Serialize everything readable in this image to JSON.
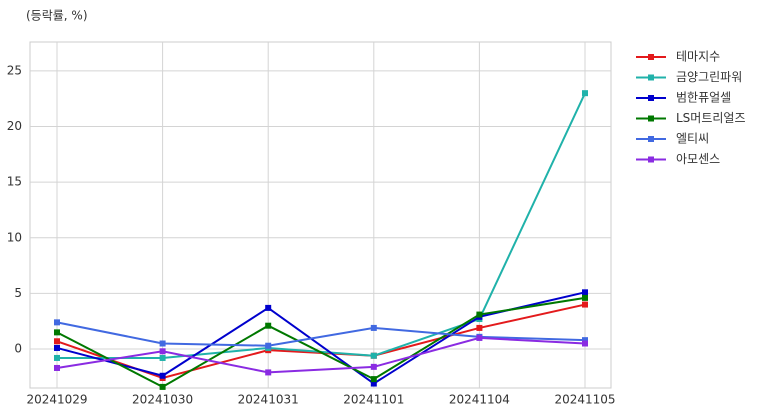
{
  "chart_data": {
    "type": "line",
    "ylabel": "(등락률, %)",
    "categories": [
      "20241029",
      "20241030",
      "20241031",
      "20241101",
      "20241104",
      "20241105"
    ],
    "series": [
      {
        "name": "테마지수",
        "color": "#e31a1c",
        "values": [
          0.7,
          -2.6,
          -0.1,
          -0.6,
          1.9,
          4.0
        ]
      },
      {
        "name": "금양그린파워",
        "color": "#20b2aa",
        "values": [
          -0.8,
          -0.8,
          0.1,
          -0.6,
          2.7,
          23.0
        ]
      },
      {
        "name": "범한퓨얼셀",
        "color": "#0000cd",
        "values": [
          0.1,
          -2.4,
          3.7,
          -3.1,
          2.9,
          5.1
        ]
      },
      {
        "name": "LS머트리얼즈",
        "color": "#007800",
        "values": [
          1.5,
          -3.4,
          2.1,
          -2.7,
          3.1,
          4.6
        ]
      },
      {
        "name": "엘티씨",
        "color": "#4169e1",
        "values": [
          2.4,
          0.5,
          0.3,
          1.9,
          1.1,
          0.8
        ]
      },
      {
        "name": "아모센스",
        "color": "#8a2be2",
        "values": [
          -1.7,
          -0.2,
          -2.1,
          -1.6,
          1.0,
          0.5
        ]
      }
    ],
    "ylim": [
      -3.5,
      27.6
    ],
    "yticks": [
      0,
      5,
      10,
      15,
      20,
      25
    ],
    "grid": true,
    "legend": "outside-right"
  }
}
